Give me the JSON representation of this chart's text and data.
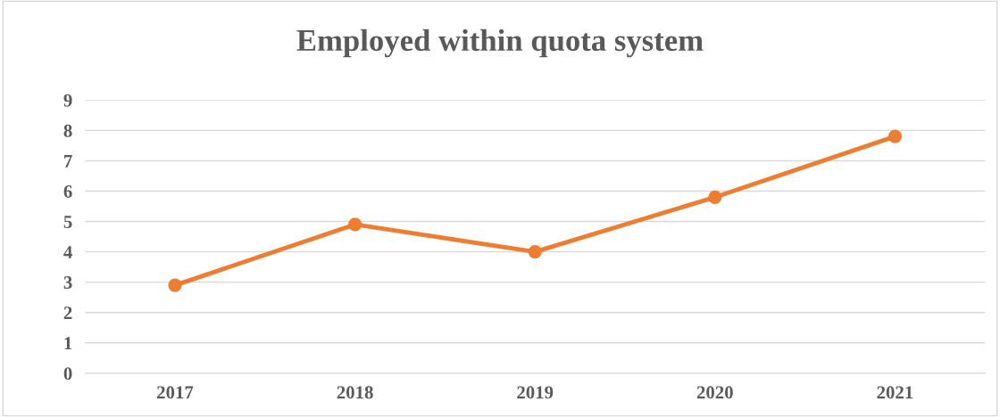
{
  "chart_data": {
    "type": "line",
    "title": "Employed within quota system",
    "categories": [
      "2017",
      "2018",
      "2019",
      "2020",
      "2021"
    ],
    "series": [
      {
        "color": "#ed7d31",
        "values": [
          2.9,
          4.9,
          4.0,
          5.8,
          7.8
        ]
      }
    ],
    "ylim": [
      0,
      9
    ],
    "yticks": [
      0,
      1,
      2,
      3,
      4,
      5,
      6,
      7,
      8,
      9
    ],
    "grid": "y",
    "marker": "circle",
    "line_style": "solid",
    "legend": false
  }
}
